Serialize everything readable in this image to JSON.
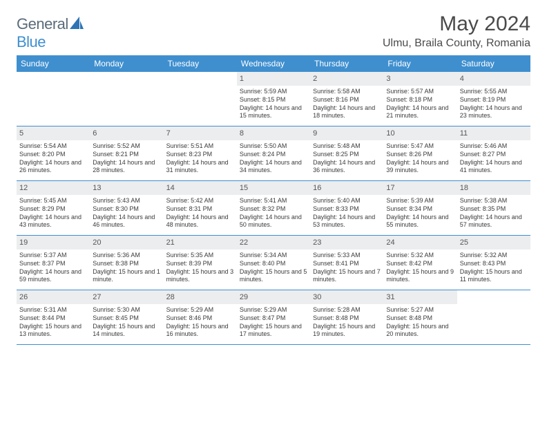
{
  "logo": {
    "part1": "General",
    "part2": "Blue"
  },
  "title": "May 2024",
  "location": "Ulmu, Braila County, Romania",
  "colors": {
    "header_bg": "#3f8fcf",
    "header_text": "#ffffff",
    "daynum_bg": "#ecedef",
    "rule": "#3f8fcf",
    "body_text": "#3a3a3a",
    "logo_grey": "#5a6b7a",
    "logo_blue": "#3f8fcf"
  },
  "dow": [
    "Sunday",
    "Monday",
    "Tuesday",
    "Wednesday",
    "Thursday",
    "Friday",
    "Saturday"
  ],
  "weeks": [
    [
      {
        "n": "",
        "sr": "",
        "ss": "",
        "dl": ""
      },
      {
        "n": "",
        "sr": "",
        "ss": "",
        "dl": ""
      },
      {
        "n": "",
        "sr": "",
        "ss": "",
        "dl": ""
      },
      {
        "n": "1",
        "sr": "Sunrise: 5:59 AM",
        "ss": "Sunset: 8:15 PM",
        "dl": "Daylight: 14 hours and 15 minutes."
      },
      {
        "n": "2",
        "sr": "Sunrise: 5:58 AM",
        "ss": "Sunset: 8:16 PM",
        "dl": "Daylight: 14 hours and 18 minutes."
      },
      {
        "n": "3",
        "sr": "Sunrise: 5:57 AM",
        "ss": "Sunset: 8:18 PM",
        "dl": "Daylight: 14 hours and 21 minutes."
      },
      {
        "n": "4",
        "sr": "Sunrise: 5:55 AM",
        "ss": "Sunset: 8:19 PM",
        "dl": "Daylight: 14 hours and 23 minutes."
      }
    ],
    [
      {
        "n": "5",
        "sr": "Sunrise: 5:54 AM",
        "ss": "Sunset: 8:20 PM",
        "dl": "Daylight: 14 hours and 26 minutes."
      },
      {
        "n": "6",
        "sr": "Sunrise: 5:52 AM",
        "ss": "Sunset: 8:21 PM",
        "dl": "Daylight: 14 hours and 28 minutes."
      },
      {
        "n": "7",
        "sr": "Sunrise: 5:51 AM",
        "ss": "Sunset: 8:23 PM",
        "dl": "Daylight: 14 hours and 31 minutes."
      },
      {
        "n": "8",
        "sr": "Sunrise: 5:50 AM",
        "ss": "Sunset: 8:24 PM",
        "dl": "Daylight: 14 hours and 34 minutes."
      },
      {
        "n": "9",
        "sr": "Sunrise: 5:48 AM",
        "ss": "Sunset: 8:25 PM",
        "dl": "Daylight: 14 hours and 36 minutes."
      },
      {
        "n": "10",
        "sr": "Sunrise: 5:47 AM",
        "ss": "Sunset: 8:26 PM",
        "dl": "Daylight: 14 hours and 39 minutes."
      },
      {
        "n": "11",
        "sr": "Sunrise: 5:46 AM",
        "ss": "Sunset: 8:27 PM",
        "dl": "Daylight: 14 hours and 41 minutes."
      }
    ],
    [
      {
        "n": "12",
        "sr": "Sunrise: 5:45 AM",
        "ss": "Sunset: 8:29 PM",
        "dl": "Daylight: 14 hours and 43 minutes."
      },
      {
        "n": "13",
        "sr": "Sunrise: 5:43 AM",
        "ss": "Sunset: 8:30 PM",
        "dl": "Daylight: 14 hours and 46 minutes."
      },
      {
        "n": "14",
        "sr": "Sunrise: 5:42 AM",
        "ss": "Sunset: 8:31 PM",
        "dl": "Daylight: 14 hours and 48 minutes."
      },
      {
        "n": "15",
        "sr": "Sunrise: 5:41 AM",
        "ss": "Sunset: 8:32 PM",
        "dl": "Daylight: 14 hours and 50 minutes."
      },
      {
        "n": "16",
        "sr": "Sunrise: 5:40 AM",
        "ss": "Sunset: 8:33 PM",
        "dl": "Daylight: 14 hours and 53 minutes."
      },
      {
        "n": "17",
        "sr": "Sunrise: 5:39 AM",
        "ss": "Sunset: 8:34 PM",
        "dl": "Daylight: 14 hours and 55 minutes."
      },
      {
        "n": "18",
        "sr": "Sunrise: 5:38 AM",
        "ss": "Sunset: 8:35 PM",
        "dl": "Daylight: 14 hours and 57 minutes."
      }
    ],
    [
      {
        "n": "19",
        "sr": "Sunrise: 5:37 AM",
        "ss": "Sunset: 8:37 PM",
        "dl": "Daylight: 14 hours and 59 minutes."
      },
      {
        "n": "20",
        "sr": "Sunrise: 5:36 AM",
        "ss": "Sunset: 8:38 PM",
        "dl": "Daylight: 15 hours and 1 minute."
      },
      {
        "n": "21",
        "sr": "Sunrise: 5:35 AM",
        "ss": "Sunset: 8:39 PM",
        "dl": "Daylight: 15 hours and 3 minutes."
      },
      {
        "n": "22",
        "sr": "Sunrise: 5:34 AM",
        "ss": "Sunset: 8:40 PM",
        "dl": "Daylight: 15 hours and 5 minutes."
      },
      {
        "n": "23",
        "sr": "Sunrise: 5:33 AM",
        "ss": "Sunset: 8:41 PM",
        "dl": "Daylight: 15 hours and 7 minutes."
      },
      {
        "n": "24",
        "sr": "Sunrise: 5:32 AM",
        "ss": "Sunset: 8:42 PM",
        "dl": "Daylight: 15 hours and 9 minutes."
      },
      {
        "n": "25",
        "sr": "Sunrise: 5:32 AM",
        "ss": "Sunset: 8:43 PM",
        "dl": "Daylight: 15 hours and 11 minutes."
      }
    ],
    [
      {
        "n": "26",
        "sr": "Sunrise: 5:31 AM",
        "ss": "Sunset: 8:44 PM",
        "dl": "Daylight: 15 hours and 13 minutes."
      },
      {
        "n": "27",
        "sr": "Sunrise: 5:30 AM",
        "ss": "Sunset: 8:45 PM",
        "dl": "Daylight: 15 hours and 14 minutes."
      },
      {
        "n": "28",
        "sr": "Sunrise: 5:29 AM",
        "ss": "Sunset: 8:46 PM",
        "dl": "Daylight: 15 hours and 16 minutes."
      },
      {
        "n": "29",
        "sr": "Sunrise: 5:29 AM",
        "ss": "Sunset: 8:47 PM",
        "dl": "Daylight: 15 hours and 17 minutes."
      },
      {
        "n": "30",
        "sr": "Sunrise: 5:28 AM",
        "ss": "Sunset: 8:48 PM",
        "dl": "Daylight: 15 hours and 19 minutes."
      },
      {
        "n": "31",
        "sr": "Sunrise: 5:27 AM",
        "ss": "Sunset: 8:48 PM",
        "dl": "Daylight: 15 hours and 20 minutes."
      },
      {
        "n": "",
        "sr": "",
        "ss": "",
        "dl": ""
      }
    ]
  ]
}
